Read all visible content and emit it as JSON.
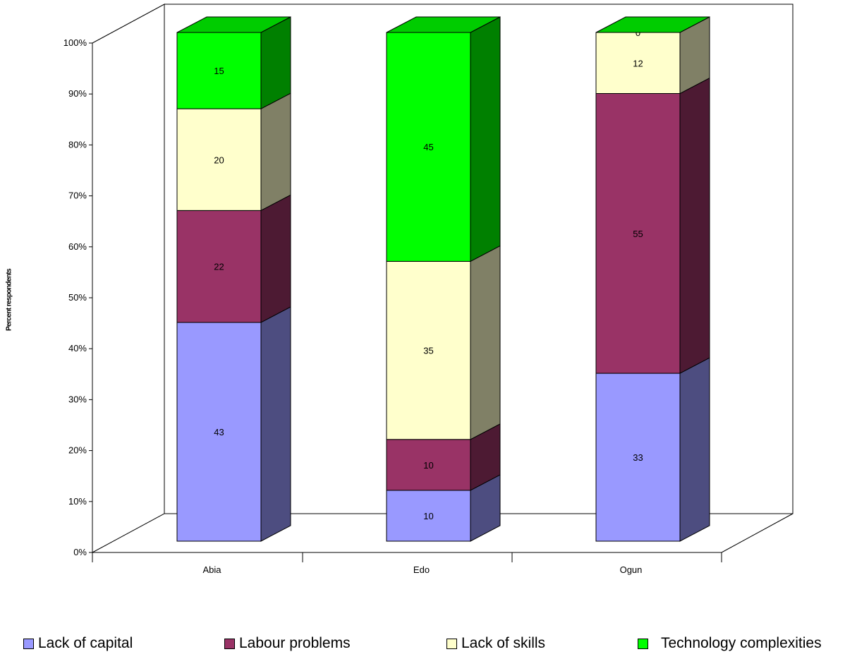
{
  "chart_data": {
    "type": "bar",
    "stacked": true,
    "three_d": true,
    "ylabel": "Percent respondents",
    "ylim": [
      0,
      100
    ],
    "y_ticks": [
      "0%",
      "10%",
      "20%",
      "30%",
      "40%",
      "50%",
      "60%",
      "70%",
      "80%",
      "90%",
      "100%"
    ],
    "categories": [
      "Abia",
      "Edo",
      "Ogun"
    ],
    "series": [
      {
        "name": "Lack of capital",
        "values": [
          43,
          10,
          33
        ],
        "color": "#9999ff",
        "side_color": "#4d4d80",
        "top_color": "#b3b3ff"
      },
      {
        "name": "Labour problems",
        "values": [
          22,
          10,
          55
        ],
        "color": "#993366",
        "side_color": "#4d1a33",
        "top_color": "#b34d80"
      },
      {
        "name": "Lack of skills",
        "values": [
          20,
          35,
          12
        ],
        "color": "#ffffcc",
        "side_color": "#808066",
        "top_color": "#ffffe6"
      },
      {
        "name": "Technology complexities",
        "values": [
          15,
          45,
          0
        ],
        "color": "#00ff00",
        "side_color": "#008000",
        "top_color": "#00cc00"
      }
    ],
    "data_labels": true,
    "legend_position": "bottom",
    "grid": false
  }
}
